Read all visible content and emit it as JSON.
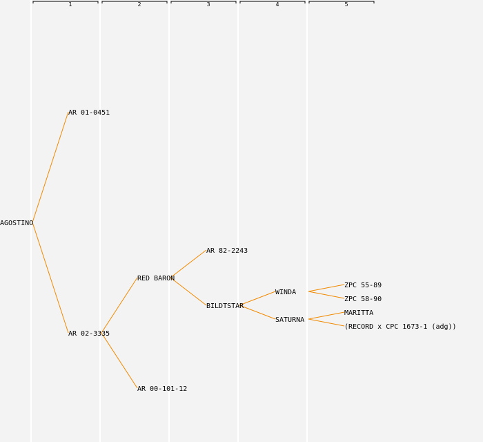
{
  "colors": {
    "background": "#f3f3f3",
    "edge": "#f08a00",
    "divider": "#ffffff",
    "text": "#000000"
  },
  "generations": [
    "1",
    "2",
    "3",
    "4",
    "5"
  ],
  "tree": {
    "root": {
      "id": "agostino",
      "label": "AGOSTINO",
      "generation": 0
    },
    "nodes": [
      {
        "id": "ar01",
        "label": "AR 01-0451",
        "generation": 1,
        "parent": "agostino"
      },
      {
        "id": "ar02",
        "label": "AR 02-3335",
        "generation": 1,
        "parent": "agostino"
      },
      {
        "id": "redbaron",
        "label": "RED BARON",
        "generation": 2,
        "parent": "ar02"
      },
      {
        "id": "ar00",
        "label": "AR 00-101-12",
        "generation": 2,
        "parent": "ar02"
      },
      {
        "id": "ar82",
        "label": "AR 82-2243",
        "generation": 3,
        "parent": "redbaron"
      },
      {
        "id": "bildtstar",
        "label": "BILDTSTAR",
        "generation": 3,
        "parent": "redbaron"
      },
      {
        "id": "winda",
        "label": "WINDA",
        "generation": 4,
        "parent": "bildtstar"
      },
      {
        "id": "saturna",
        "label": "SATURNA",
        "generation": 4,
        "parent": "bildtstar"
      },
      {
        "id": "zpc55",
        "label": "ZPC 55-89",
        "generation": 5,
        "parent": "winda"
      },
      {
        "id": "zpc58",
        "label": "ZPC 58-90",
        "generation": 5,
        "parent": "winda"
      },
      {
        "id": "maritta",
        "label": "MARITTA",
        "generation": 5,
        "parent": "saturna"
      },
      {
        "id": "record",
        "label": "(RECORD x CPC 1673-1 (adg))",
        "generation": 5,
        "parent": "saturna"
      }
    ]
  }
}
